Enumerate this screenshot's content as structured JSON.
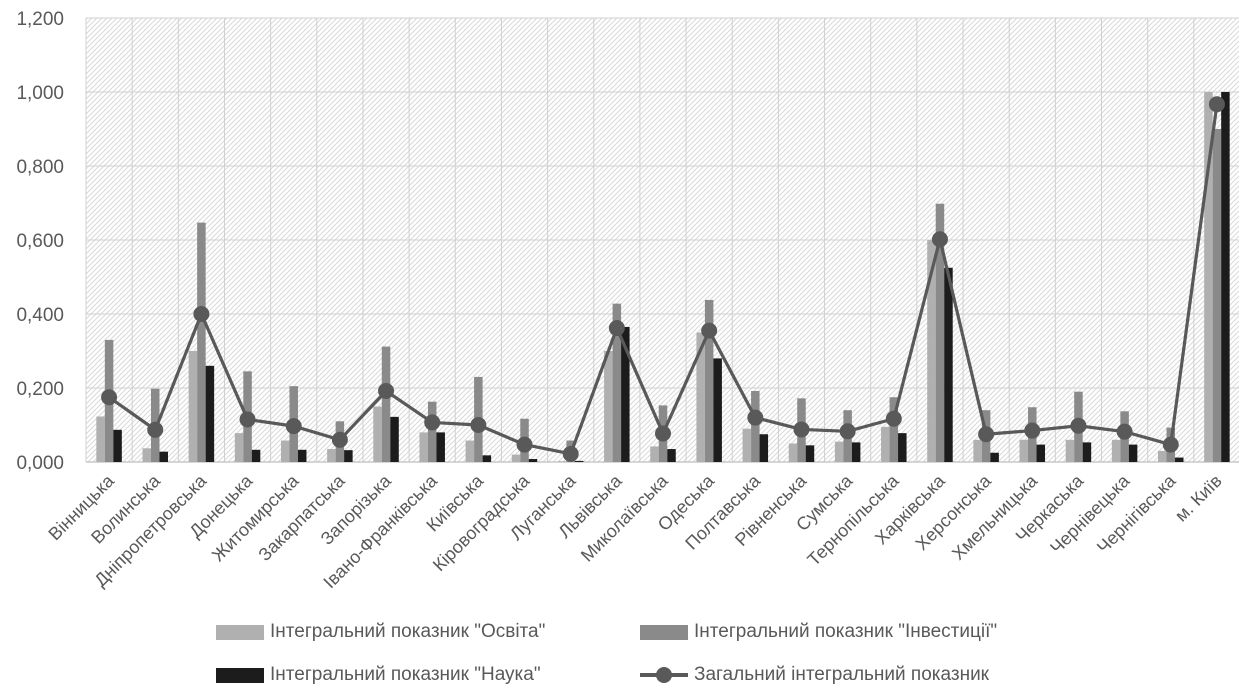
{
  "chart_data": {
    "type": "bar",
    "categories": [
      "Вінницька",
      "Волинська",
      "Дніпропетровська",
      "Донецька",
      "Житомирська",
      "Закарпатська",
      "Запорізька",
      "Івано-Франківська",
      "Київська",
      "Кіровоградська",
      "Луганська",
      "Львівська",
      "Миколаївська",
      "Одеська",
      "Полтавська",
      "Рівненська",
      "Сумська",
      "Тернопільська",
      "Харківська",
      "Херсонська",
      "Хмельницька",
      "Черкаська",
      "Чернівецька",
      "Чернігівська",
      "м. Київ"
    ],
    "series": [
      {
        "name": "Інтегральний показник \"Освіта\"",
        "kind": "bar",
        "color": "#b0b0b0",
        "values": [
          0.123,
          0.037,
          0.3,
          0.078,
          0.058,
          0.035,
          0.15,
          0.08,
          0.058,
          0.02,
          0.002,
          0.3,
          0.042,
          0.35,
          0.09,
          0.05,
          0.055,
          0.095,
          0.6,
          0.06,
          0.06,
          0.06,
          0.06,
          0.03,
          1.0
        ]
      },
      {
        "name": "Інтегральний показник \"Інвестиції\"",
        "kind": "bar",
        "color": "#8a8a8a",
        "values": [
          0.33,
          0.198,
          0.647,
          0.245,
          0.205,
          0.11,
          0.312,
          0.163,
          0.23,
          0.117,
          0.058,
          0.428,
          0.153,
          0.438,
          0.192,
          0.172,
          0.14,
          0.175,
          0.698,
          0.14,
          0.148,
          0.19,
          0.137,
          0.093,
          0.9
        ]
      },
      {
        "name": "Інтегральний показник \"Наука\"",
        "kind": "bar",
        "color": "#1c1c1c",
        "values": [
          0.087,
          0.028,
          0.26,
          0.033,
          0.033,
          0.032,
          0.122,
          0.08,
          0.018,
          0.008,
          0.003,
          0.365,
          0.035,
          0.28,
          0.075,
          0.045,
          0.053,
          0.078,
          0.525,
          0.025,
          0.047,
          0.053,
          0.047,
          0.012,
          1.0
        ]
      },
      {
        "name": "Загальний інтегральний показник",
        "kind": "line",
        "color": "#595959",
        "values": [
          0.175,
          0.087,
          0.4,
          0.115,
          0.097,
          0.06,
          0.192,
          0.107,
          0.1,
          0.047,
          0.022,
          0.362,
          0.077,
          0.355,
          0.12,
          0.088,
          0.083,
          0.117,
          0.602,
          0.075,
          0.085,
          0.098,
          0.082,
          0.047,
          0.967
        ]
      }
    ],
    "yticks": [
      "0,000",
      "0,200",
      "0,400",
      "0,600",
      "0,800",
      "1,000",
      "1,200"
    ],
    "ylim": [
      0,
      1.2
    ],
    "grid": true,
    "legend_position": "bottom"
  }
}
